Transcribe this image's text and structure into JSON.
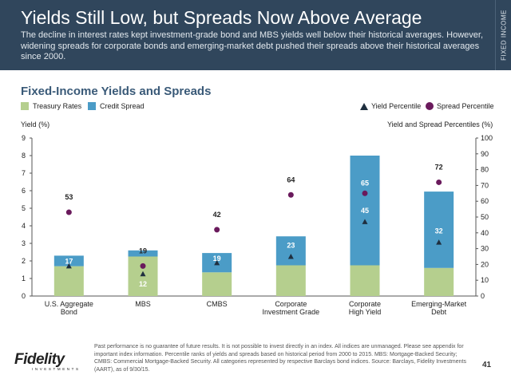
{
  "header": {
    "title": "Yields Still Low, but Spreads Now Above Average",
    "subtitle": "The decline in interest rates kept investment-grade bond and MBS yields well below their historical averages. However, widening spreads for corporate bonds and emerging-market debt pushed their spreads above their historical averages since 2000.",
    "side_tab": "FIXED INCOME"
  },
  "section_title": "Fixed-Income Yields and Spreads",
  "footer": {
    "footnote": "Past performance is no guarantee of future results. It is not possible to invest directly in an index. All indices are unmanaged. Please see appendix for important index information. Percentile ranks of yields and spreads based on historical period from 2000 to 2015. MBS: Mortgage-Backed Security; CMBS: Commercial Mortgage-Backed Security. All categories represented by respective Barclays bond indices. Source: Barclays, Fidelity Investments (AART), as of 9/30/15.",
    "page_number": "41",
    "logo_text": "Fidelity",
    "logo_sub": "INVESTMENTS"
  },
  "colors": {
    "treasury": "#b5cf8e",
    "spread": "#4b9cc7",
    "triangle": "#1f2f3f",
    "dot": "#6a1a5c",
    "header_bg": "#30465c"
  },
  "chart_data": {
    "type": "bar",
    "stacked": true,
    "categories": [
      "U.S. Aggregate\nBond",
      "MBS",
      "CMBS",
      "Corporate\nInvestment Grade",
      "Corporate\nHigh Yield",
      "Emerging-Market\nDebt"
    ],
    "series": [
      {
        "name": "Treasury Rates",
        "values": [
          1.7,
          2.25,
          1.35,
          1.75,
          1.75,
          1.6
        ]
      },
      {
        "name": "Credit Spread",
        "values": [
          0.6,
          0.35,
          1.1,
          1.65,
          6.25,
          4.35
        ]
      }
    ],
    "yield_percentile": {
      "name": "Yield Percentile",
      "values": [
        17,
        12,
        19,
        23,
        45,
        32
      ]
    },
    "spread_percentile": {
      "name": "Spread Percentile",
      "values": [
        53,
        19,
        42,
        64,
        65,
        72
      ]
    },
    "ylabel": "Yield (%)",
    "y2label": "Yield and Spread Percentiles (%)",
    "ylim": [
      0,
      9
    ],
    "y2lim": [
      0,
      100
    ],
    "yticks": [
      0,
      1,
      2,
      3,
      4,
      5,
      6,
      7,
      8,
      9
    ],
    "y2ticks": [
      0,
      10,
      20,
      30,
      40,
      50,
      60,
      70,
      80,
      90,
      100
    ],
    "legend_position": "top"
  }
}
